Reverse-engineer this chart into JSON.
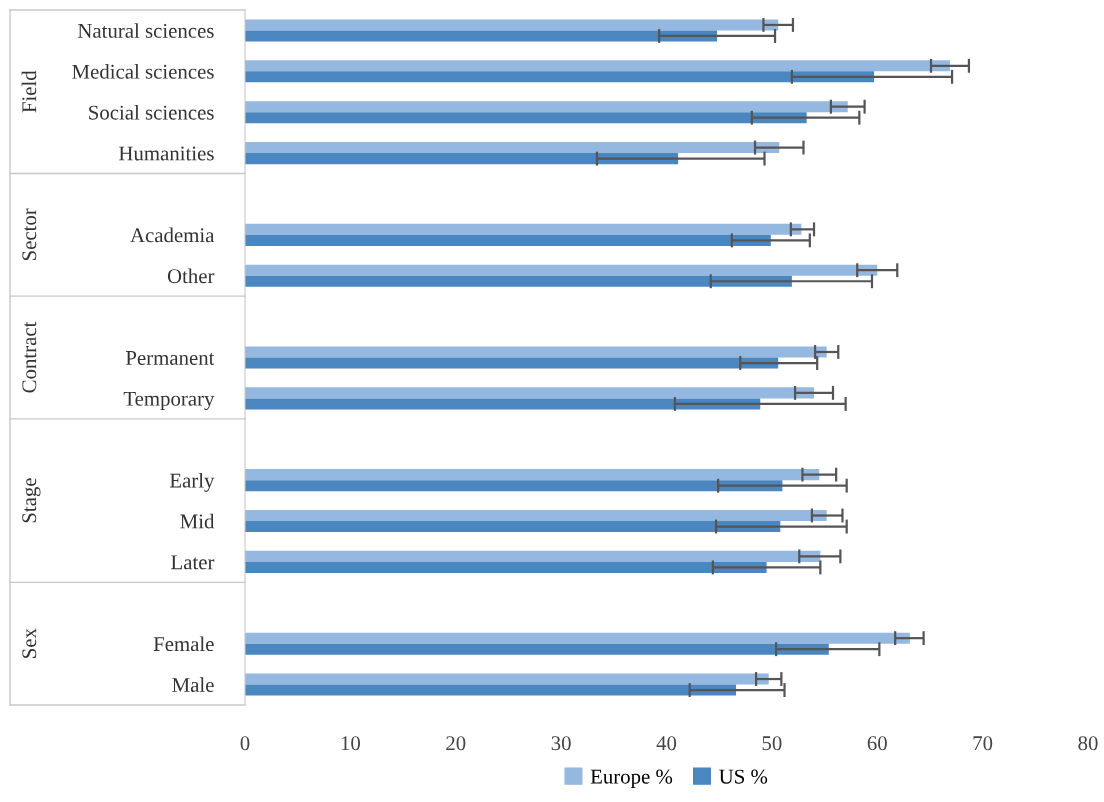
{
  "chart_data": {
    "type": "bar",
    "orientation": "horizontal",
    "categories": [
      "Natural sciences",
      "Medical sciences",
      "Social sciences",
      "Humanities",
      null,
      "Academia",
      "Other",
      null,
      "Permanent",
      "Temporary",
      null,
      "Early",
      "Mid",
      "Later",
      null,
      "Female",
      "Male"
    ],
    "series": [
      {
        "name": "Europe %",
        "color": "#95b8e0",
        "values": [
          50.6,
          66.9,
          57.2,
          50.7,
          null,
          52.8,
          60.0,
          null,
          55.2,
          54.0,
          null,
          54.5,
          55.2,
          54.6,
          null,
          63.1,
          49.7
        ],
        "errors": [
          [
            49.2,
            52.0
          ],
          [
            65.1,
            68.7
          ],
          [
            55.6,
            58.8
          ],
          [
            48.4,
            53.0
          ],
          null,
          [
            51.8,
            54.0
          ],
          [
            58.1,
            61.9
          ],
          null,
          [
            54.1,
            56.3
          ],
          [
            52.2,
            55.8
          ],
          null,
          [
            52.9,
            56.1
          ],
          [
            53.8,
            56.7
          ],
          [
            52.6,
            56.5
          ],
          null,
          [
            61.7,
            64.4
          ],
          [
            48.5,
            50.9
          ]
        ]
      },
      {
        "name": "US %",
        "color": "#4a86c0",
        "values": [
          44.8,
          59.7,
          53.3,
          41.1,
          null,
          49.9,
          51.9,
          null,
          50.6,
          48.9,
          null,
          51.0,
          50.8,
          49.5,
          null,
          55.4,
          46.6
        ],
        "errors": [
          [
            39.3,
            50.3
          ],
          [
            51.9,
            67.1
          ],
          [
            48.1,
            58.3
          ],
          [
            33.4,
            49.3
          ],
          null,
          [
            46.2,
            53.6
          ],
          [
            44.2,
            59.5
          ],
          null,
          [
            47.0,
            54.3
          ],
          [
            40.8,
            57.0
          ],
          null,
          [
            44.9,
            57.1
          ],
          [
            44.7,
            57.1
          ],
          [
            44.4,
            54.6
          ],
          null,
          [
            50.4,
            60.2
          ],
          [
            42.2,
            51.2
          ]
        ]
      }
    ],
    "annotations": [
      "Field",
      "Sector",
      "Contract",
      "Stage",
      "Sex"
    ],
    "xlim": [
      0,
      80
    ],
    "xticks": [
      0,
      10,
      20,
      30,
      40,
      50,
      60,
      70,
      80
    ],
    "grid": false,
    "legend": "bottom"
  }
}
